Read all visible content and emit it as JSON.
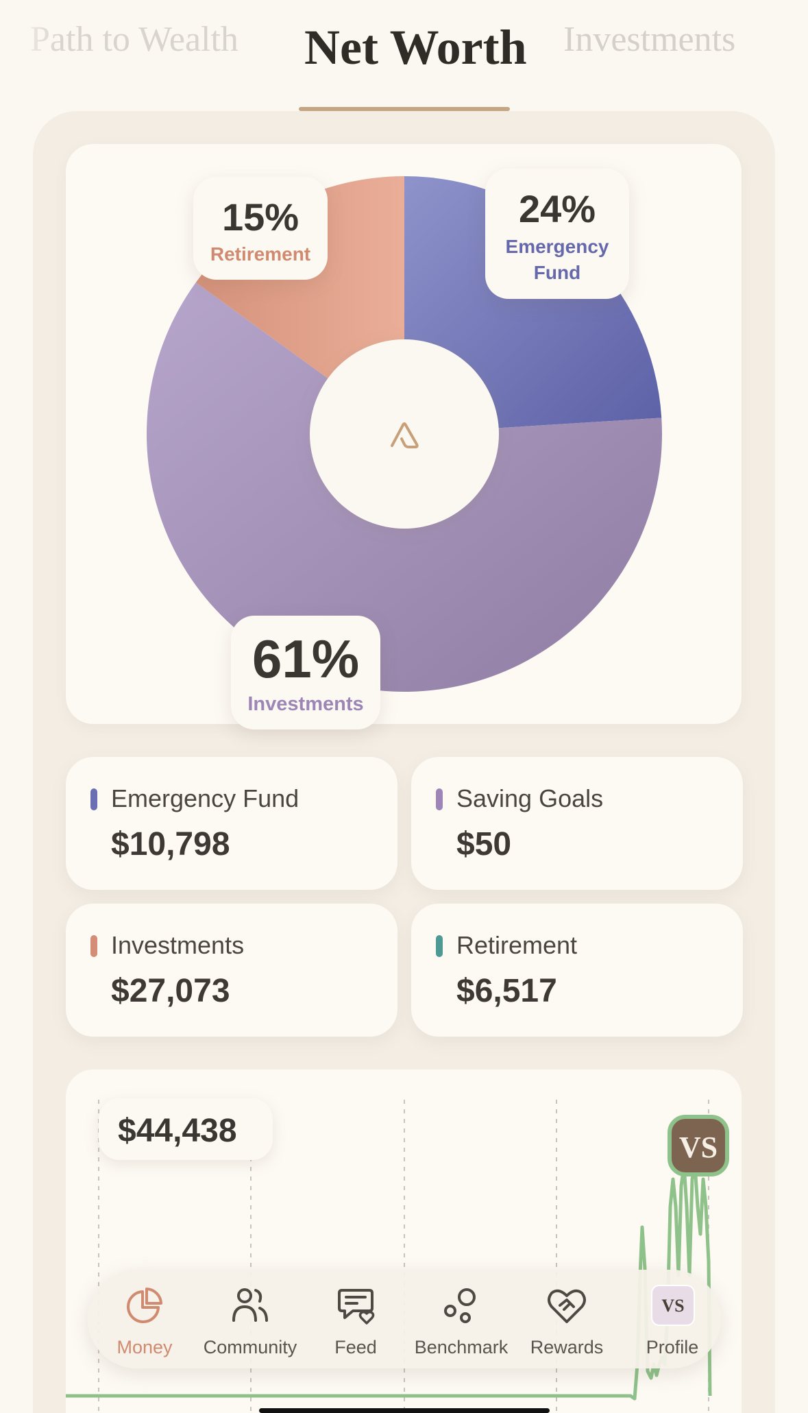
{
  "tabs": [
    {
      "label": "Path to Wealth"
    },
    {
      "label": "Net Worth"
    },
    {
      "label": "Investments"
    }
  ],
  "chart_data": [
    {
      "type": "pie",
      "categories": [
        "Emergency Fund",
        "Investments",
        "Retirement"
      ],
      "values": [
        24,
        61,
        15
      ],
      "colors": [
        "#6f73b4",
        "#a795b9",
        "#dc9c86"
      ],
      "labels": [
        {
          "pct": "24%",
          "name_line1": "Emergency",
          "name_line2": "Fund"
        },
        {
          "pct": "61%",
          "name": "Investments"
        },
        {
          "pct": "15%",
          "name": "Retirement"
        }
      ],
      "center_icon": "app-logo-icon"
    },
    {
      "type": "line",
      "title": "$44,438",
      "series": [
        {
          "color": "#8fc28a"
        }
      ],
      "note": "Values rise sharply at the far right end of the series",
      "grid": "vertical dashed"
    }
  ],
  "stats": [
    {
      "name": "Emergency Fund",
      "value": "$10,798",
      "color": "#6a6fb3"
    },
    {
      "name": "Saving Goals",
      "value": "$50",
      "color": "#9d85b8"
    },
    {
      "name": "Investments",
      "value": "$27,073",
      "color": "#d48d76"
    },
    {
      "name": "Retirement",
      "value": "$6,517",
      "color": "#4d9a95"
    }
  ],
  "vs_badge": "VS",
  "nav": [
    {
      "label": "Money",
      "icon": "pie-chart-icon",
      "active": true
    },
    {
      "label": "Community",
      "icon": "people-icon"
    },
    {
      "label": "Feed",
      "icon": "feed-heart-icon"
    },
    {
      "label": "Benchmark",
      "icon": "bubbles-icon"
    },
    {
      "label": "Rewards",
      "icon": "heart-handshake-icon"
    },
    {
      "label": "Profile",
      "icon": "avatar",
      "avatar_text": "VS"
    }
  ],
  "colors": {
    "accent": "#c5a583",
    "active_nav": "#cf8a70",
    "line": "#8fc28a"
  }
}
